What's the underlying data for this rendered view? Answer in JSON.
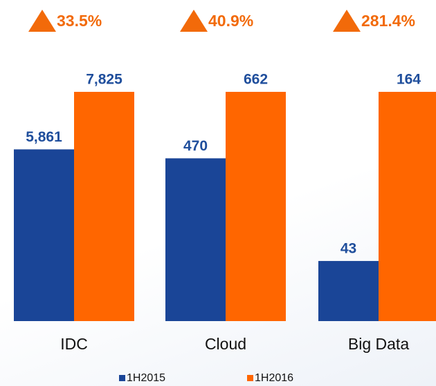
{
  "chart_data": {
    "type": "bar",
    "categories": [
      "IDC",
      "Cloud",
      "Big Data"
    ],
    "series": [
      {
        "name": "1H2015",
        "color": "#1a4597",
        "values": [
          5861,
          470,
          43
        ],
        "value_labels": [
          "5,861",
          "470",
          "43"
        ]
      },
      {
        "name": "1H2016",
        "color": "#ff6600",
        "values": [
          7825,
          662,
          164
        ],
        "value_labels": [
          "7,825",
          "662",
          "164"
        ]
      }
    ],
    "annotations": [
      "33.5%",
      "40.9%",
      "281.4%"
    ],
    "annotation_color": "#f26a0a",
    "label_color": "#1f4e9c"
  }
}
